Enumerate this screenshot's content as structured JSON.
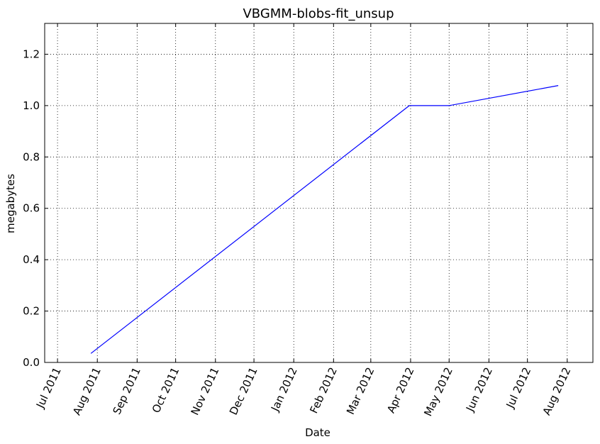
{
  "chart_data": {
    "type": "line",
    "title": "VBGMM-blobs-fit_unsup",
    "xlabel": "Date",
    "ylabel": "megabytes",
    "x_ticks": [
      "Jul 2011",
      "Aug 2011",
      "Sep 2011",
      "Oct 2011",
      "Nov 2011",
      "Dec 2011",
      "Jan 2012",
      "Feb 2012",
      "Mar 2012",
      "Apr 2012",
      "May 2012",
      "Jun 2012",
      "Jul 2012",
      "Aug 2012"
    ],
    "y_ticks": [
      "0.0",
      "0.2",
      "0.4",
      "0.6",
      "0.8",
      "1.0",
      "1.2"
    ],
    "xlim": [
      "2011-06-21",
      "2012-08-21"
    ],
    "ylim": [
      0,
      1.32
    ],
    "grid": true,
    "series": [
      {
        "color": "#0000ff",
        "points": [
          {
            "x": "2011-07-27",
            "y": 0.035
          },
          {
            "x": "2012-03-31",
            "y": 1.0
          },
          {
            "x": "2012-05-01",
            "y": 1.0
          },
          {
            "x": "2012-07-25",
            "y": 1.078
          }
        ]
      }
    ]
  }
}
